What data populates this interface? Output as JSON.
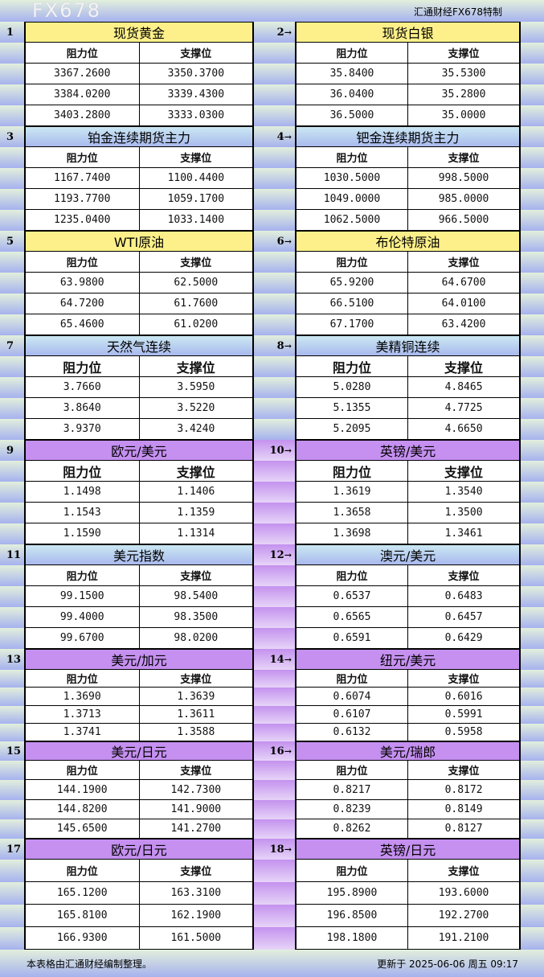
{
  "header": {
    "title": "汇通财经FX678特制"
  },
  "col_headers": {
    "resistance": "阻力位",
    "support": "支撑位"
  },
  "arrow": "→",
  "colors": {
    "yellow": "#fdf08a",
    "blue": "#b9cff0",
    "purple": "#c590f0"
  },
  "pairs": [
    {
      "left": {
        "num": "1",
        "name": "现货黄金",
        "color": "yellow",
        "rows": [
          [
            "3367.2600",
            "3350.3700"
          ],
          [
            "3384.0200",
            "3339.4300"
          ],
          [
            "3403.2800",
            "3333.0300"
          ]
        ]
      },
      "right": {
        "num": "2",
        "name": "现货白银",
        "color": "yellow",
        "rows": [
          [
            "35.8400",
            "35.5300"
          ],
          [
            "36.0400",
            "35.2800"
          ],
          [
            "36.5000",
            "35.0000"
          ]
        ]
      }
    },
    {
      "left": {
        "num": "3",
        "name": "铂金连续期货主力",
        "color": "blue",
        "rows": [
          [
            "1167.7400",
            "1100.4400"
          ],
          [
            "1193.7700",
            "1059.1700"
          ],
          [
            "1235.0400",
            "1033.1400"
          ]
        ]
      },
      "right": {
        "num": "4",
        "name": "钯金连续期货主力",
        "color": "blue",
        "rows": [
          [
            "1030.5000",
            "998.5000"
          ],
          [
            "1049.0000",
            "985.0000"
          ],
          [
            "1062.5000",
            "966.5000"
          ]
        ]
      }
    },
    {
      "left": {
        "num": "5",
        "name": "WTI原油",
        "color": "yellow",
        "rows": [
          [
            "63.9800",
            "62.5000"
          ],
          [
            "64.7200",
            "61.7600"
          ],
          [
            "65.4600",
            "61.0200"
          ]
        ]
      },
      "right": {
        "num": "6",
        "name": "布伦特原油",
        "color": "yellow",
        "rows": [
          [
            "65.9200",
            "64.6700"
          ],
          [
            "66.5100",
            "64.0100"
          ],
          [
            "67.1700",
            "63.4200"
          ]
        ]
      }
    },
    {
      "left": {
        "num": "7",
        "name": "天然气连续",
        "color": "blue",
        "rows": [
          [
            "3.7660",
            "3.5950"
          ],
          [
            "3.8640",
            "3.5220"
          ],
          [
            "3.9370",
            "3.4240"
          ]
        ]
      },
      "right": {
        "num": "8",
        "name": "美精铜连续",
        "color": "blue",
        "rows": [
          [
            "5.0280",
            "4.8465"
          ],
          [
            "5.1355",
            "4.7725"
          ],
          [
            "5.2095",
            "4.6650"
          ]
        ]
      }
    },
    {
      "left": {
        "num": "9",
        "name": "欧元/美元",
        "color": "purple",
        "rows": [
          [
            "1.1498",
            "1.1406"
          ],
          [
            "1.1543",
            "1.1359"
          ],
          [
            "1.1590",
            "1.1314"
          ]
        ]
      },
      "right": {
        "num": "10",
        "name": "英镑/美元",
        "color": "purple",
        "rows": [
          [
            "1.3619",
            "1.3540"
          ],
          [
            "1.3658",
            "1.3500"
          ],
          [
            "1.3698",
            "1.3461"
          ]
        ]
      }
    },
    {
      "left": {
        "num": "11",
        "name": "美元指数",
        "color": "blue",
        "rows": [
          [
            "99.1500",
            "98.5400"
          ],
          [
            "99.4000",
            "98.3500"
          ],
          [
            "99.6700",
            "98.0200"
          ]
        ]
      },
      "right": {
        "num": "12",
        "name": "澳元/美元",
        "color": "blue",
        "rows": [
          [
            "0.6537",
            "0.6483"
          ],
          [
            "0.6565",
            "0.6457"
          ],
          [
            "0.6591",
            "0.6429"
          ]
        ]
      }
    },
    {
      "left": {
        "num": "13",
        "name": "美元/加元",
        "color": "purple",
        "rows": [
          [
            "1.3690",
            "1.3639"
          ],
          [
            "1.3713",
            "1.3611"
          ],
          [
            "1.3741",
            "1.3588"
          ]
        ]
      },
      "right": {
        "num": "14",
        "name": "纽元/美元",
        "color": "purple",
        "rows": [
          [
            "0.6074",
            "0.6016"
          ],
          [
            "0.6107",
            "0.5991"
          ],
          [
            "0.6132",
            "0.5958"
          ]
        ]
      }
    },
    {
      "left": {
        "num": "15",
        "name": "美元/日元",
        "color": "purple",
        "rows": [
          [
            "144.1900",
            "142.7300"
          ],
          [
            "144.8200",
            "141.9000"
          ],
          [
            "145.6500",
            "141.2700"
          ]
        ]
      },
      "right": {
        "num": "16",
        "name": "美元/瑞郎",
        "color": "purple",
        "rows": [
          [
            "0.8217",
            "0.8172"
          ],
          [
            "0.8239",
            "0.8149"
          ],
          [
            "0.8262",
            "0.8127"
          ]
        ]
      }
    },
    {
      "left": {
        "num": "17",
        "name": "欧元/日元",
        "color": "purple",
        "rows": [
          [
            "165.1200",
            "163.3100"
          ],
          [
            "165.8100",
            "162.1900"
          ],
          [
            "166.9300",
            "161.5000"
          ]
        ]
      },
      "right": {
        "num": "18",
        "name": "英镑/日元",
        "color": "purple",
        "rows": [
          [
            "195.8900",
            "193.6000"
          ],
          [
            "196.8500",
            "192.2700"
          ],
          [
            "198.1800",
            "191.2100"
          ]
        ]
      }
    }
  ],
  "footer": {
    "note": "本表格由汇通财经编制整理。",
    "updated": "更新于 2025-06-06 周五 09:17"
  },
  "watermark": "FX678"
}
